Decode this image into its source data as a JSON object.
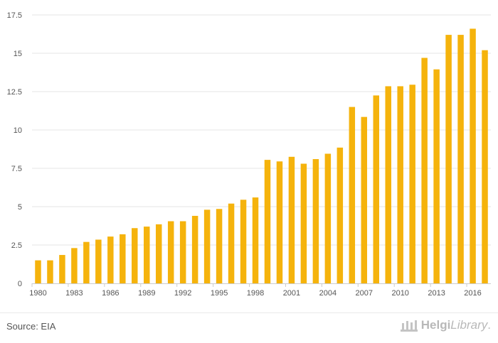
{
  "chart_data": {
    "type": "bar",
    "categories": [
      "1980",
      "1981",
      "1982",
      "1983",
      "1984",
      "1985",
      "1986",
      "1987",
      "1988",
      "1989",
      "1990",
      "1991",
      "1992",
      "1993",
      "1994",
      "1995",
      "1996",
      "1997",
      "1998",
      "1999",
      "2000",
      "2001",
      "2002",
      "2003",
      "2004",
      "2005",
      "2006",
      "2007",
      "2008",
      "2009",
      "2010",
      "2011",
      "2012",
      "2013",
      "2014",
      "2015",
      "2016",
      "2017"
    ],
    "x_tick_labels": [
      "1980",
      "1983",
      "1986",
      "1989",
      "1992",
      "1995",
      "1998",
      "2001",
      "2004",
      "2007",
      "2010",
      "2013",
      "2016"
    ],
    "values": [
      1.5,
      1.5,
      1.85,
      2.3,
      2.7,
      2.85,
      3.05,
      3.2,
      3.6,
      3.7,
      3.85,
      4.05,
      4.05,
      4.4,
      4.8,
      4.85,
      5.2,
      5.45,
      5.6,
      8.05,
      7.95,
      8.25,
      7.8,
      8.1,
      8.45,
      8.85,
      11.5,
      10.85,
      12.25,
      12.85,
      12.85,
      12.95,
      14.7,
      13.95,
      16.2,
      16.2,
      16.6,
      15.2
    ],
    "y_ticks": [
      0,
      2.5,
      5,
      7.5,
      10,
      12.5,
      15,
      17.5
    ],
    "y_tick_labels": [
      "0",
      "2.5",
      "5",
      "7.5",
      "10",
      "12.5",
      "15",
      "17.5"
    ],
    "ylim": [
      0,
      17.5
    ],
    "bar_color": "#f5b30c",
    "grid": true,
    "title": "",
    "xlabel": "",
    "ylabel": ""
  },
  "footer": {
    "source": "Source: EIA",
    "brand_part1": "Helgi",
    "brand_part2": "Library",
    "brand_suffix": "."
  }
}
